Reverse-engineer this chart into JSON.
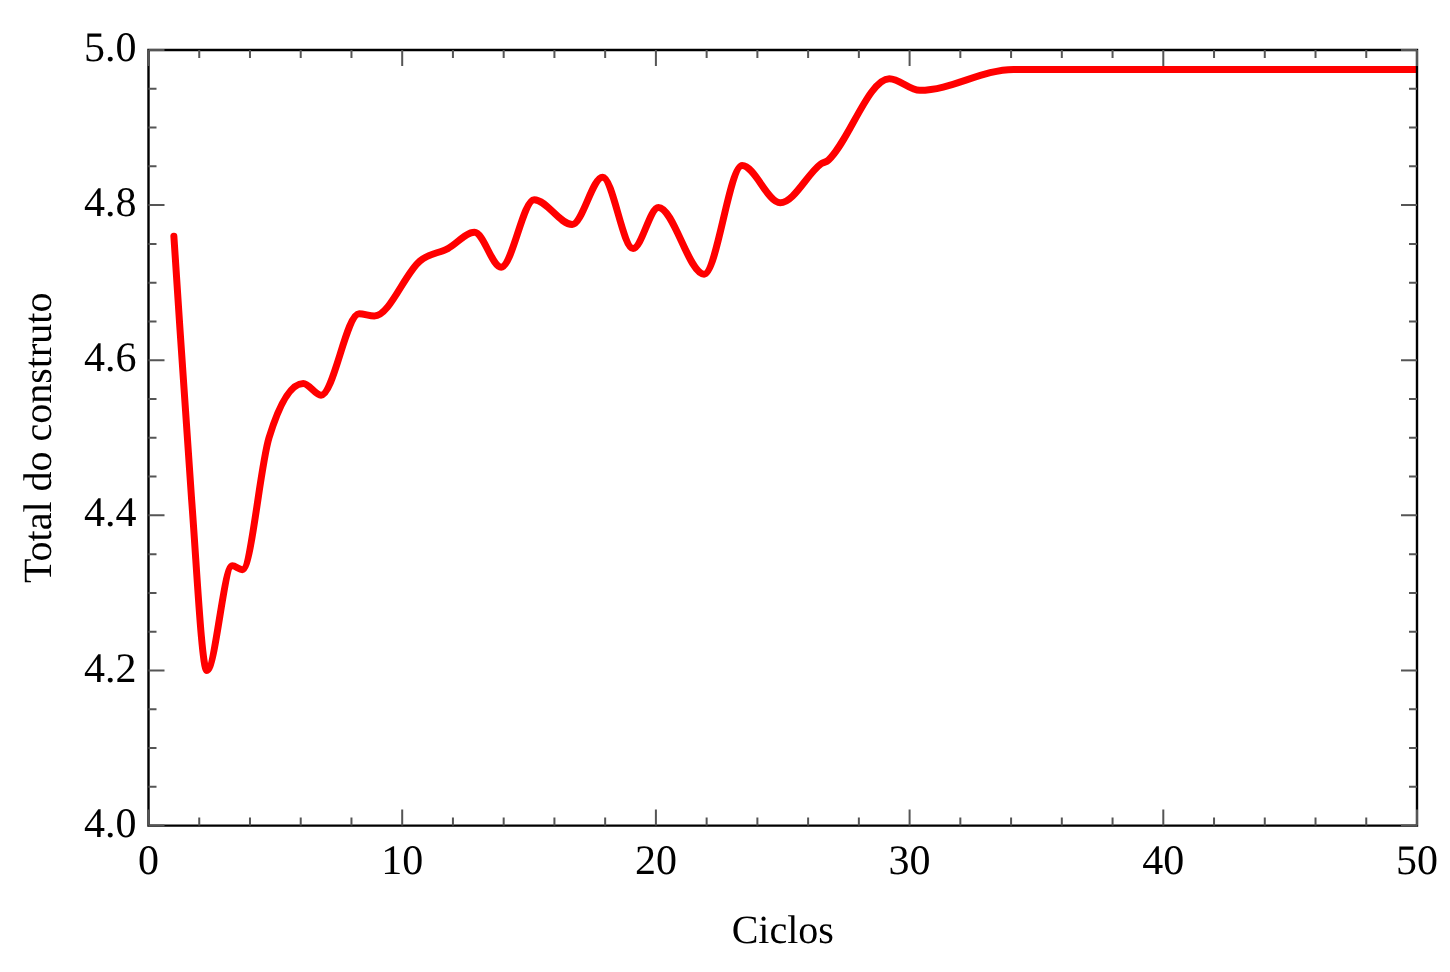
{
  "chart_data": {
    "type": "line",
    "xlabel": "Ciclos",
    "ylabel": "Total do construto",
    "grid": false,
    "legend": false,
    "marker": "none",
    "line_style": "solid",
    "xlim": [
      0,
      50
    ],
    "ylim": [
      4.0,
      5.0
    ],
    "xticks": [
      0,
      {
        "value": 2,
        "label": null
      },
      {
        "value": 4,
        "label": null
      },
      {
        "value": 6,
        "label": null
      },
      {
        "value": 8,
        "label": null
      },
      10,
      {
        "value": 12,
        "label": null
      },
      {
        "value": 14,
        "label": null
      },
      {
        "value": 16,
        "label": null
      },
      {
        "value": 18,
        "label": null
      },
      20,
      {
        "value": 22,
        "label": null
      },
      {
        "value": 24,
        "label": null
      },
      {
        "value": 26,
        "label": null
      },
      {
        "value": 28,
        "label": null
      },
      30,
      {
        "value": 32,
        "label": null
      },
      {
        "value": 34,
        "label": null
      },
      {
        "value": 36,
        "label": null
      },
      {
        "value": 38,
        "label": null
      },
      40,
      {
        "value": 42,
        "label": null
      },
      {
        "value": 44,
        "label": null
      },
      {
        "value": 46,
        "label": null
      },
      {
        "value": 48,
        "label": null
      },
      50
    ],
    "yticks": [
      {
        "value": 4.0,
        "label": "4.0"
      },
      {
        "value": 4.05,
        "label": null
      },
      {
        "value": 4.1,
        "label": null
      },
      {
        "value": 4.15,
        "label": null
      },
      {
        "value": 4.2,
        "label": "4.2"
      },
      {
        "value": 4.25,
        "label": null
      },
      {
        "value": 4.3,
        "label": null
      },
      {
        "value": 4.35,
        "label": null
      },
      {
        "value": 4.4,
        "label": "4.4"
      },
      {
        "value": 4.45,
        "label": null
      },
      {
        "value": 4.5,
        "label": null
      },
      {
        "value": 4.55,
        "label": null
      },
      {
        "value": 4.6,
        "label": "4.6"
      },
      {
        "value": 4.65,
        "label": null
      },
      {
        "value": 4.7,
        "label": null
      },
      {
        "value": 4.75,
        "label": null
      },
      {
        "value": 4.8,
        "label": "4.8"
      },
      {
        "value": 4.85,
        "label": null
      },
      {
        "value": 4.9,
        "label": null
      },
      {
        "value": 4.95,
        "label": null
      },
      {
        "value": 5.0,
        "label": "5.0"
      }
    ],
    "series": [
      {
        "color": "#ff0000",
        "x": [
          1,
          1.7,
          2.3,
          3.3,
          3.7,
          4.75,
          6.1,
          6.8,
          8.3,
          8.9,
          10.7,
          11.8,
          12.85,
          13.9,
          15.2,
          16.7,
          17.9,
          19.1,
          20.1,
          21.9,
          23.4,
          24.9,
          26.5,
          26.8,
          29.2,
          30.4,
          34.1,
          50
        ],
        "values": [
          4.76,
          4.42,
          4.2,
          4.335,
          4.33,
          4.5,
          4.57,
          4.555,
          4.66,
          4.657,
          4.728,
          4.744,
          4.765,
          4.72,
          4.807,
          4.775,
          4.836,
          4.744,
          4.797,
          4.711,
          4.851,
          4.803,
          4.853,
          4.858,
          4.963,
          4.948,
          4.975,
          4.975
        ]
      }
    ]
  }
}
